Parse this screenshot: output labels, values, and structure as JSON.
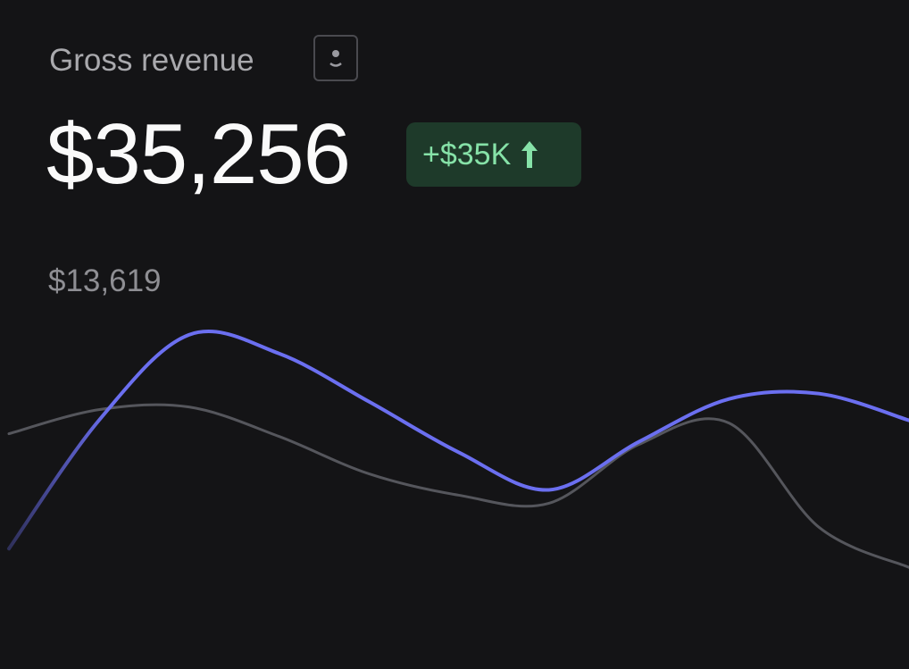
{
  "header": {
    "title": "Gross revenue",
    "value": "$35,256",
    "change": "+$35K"
  },
  "chart_data": {
    "type": "line",
    "annotation": "$13,619",
    "categories": [
      null,
      null,
      null,
      null,
      null,
      null,
      null,
      null,
      null,
      null,
      null
    ],
    "ylim": [
      0,
      15000
    ],
    "series": [
      {
        "color": "#6b6ff0",
        "values": [
          4500,
          9300,
          12500,
          11800,
          10000,
          8100,
          6700,
          8500,
          10100,
          10300,
          9300
        ]
      },
      {
        "color": "#55565c",
        "values": [
          8800,
          9700,
          9800,
          8700,
          7300,
          6500,
          6200,
          8400,
          9200,
          5300,
          3800
        ]
      }
    ]
  }
}
